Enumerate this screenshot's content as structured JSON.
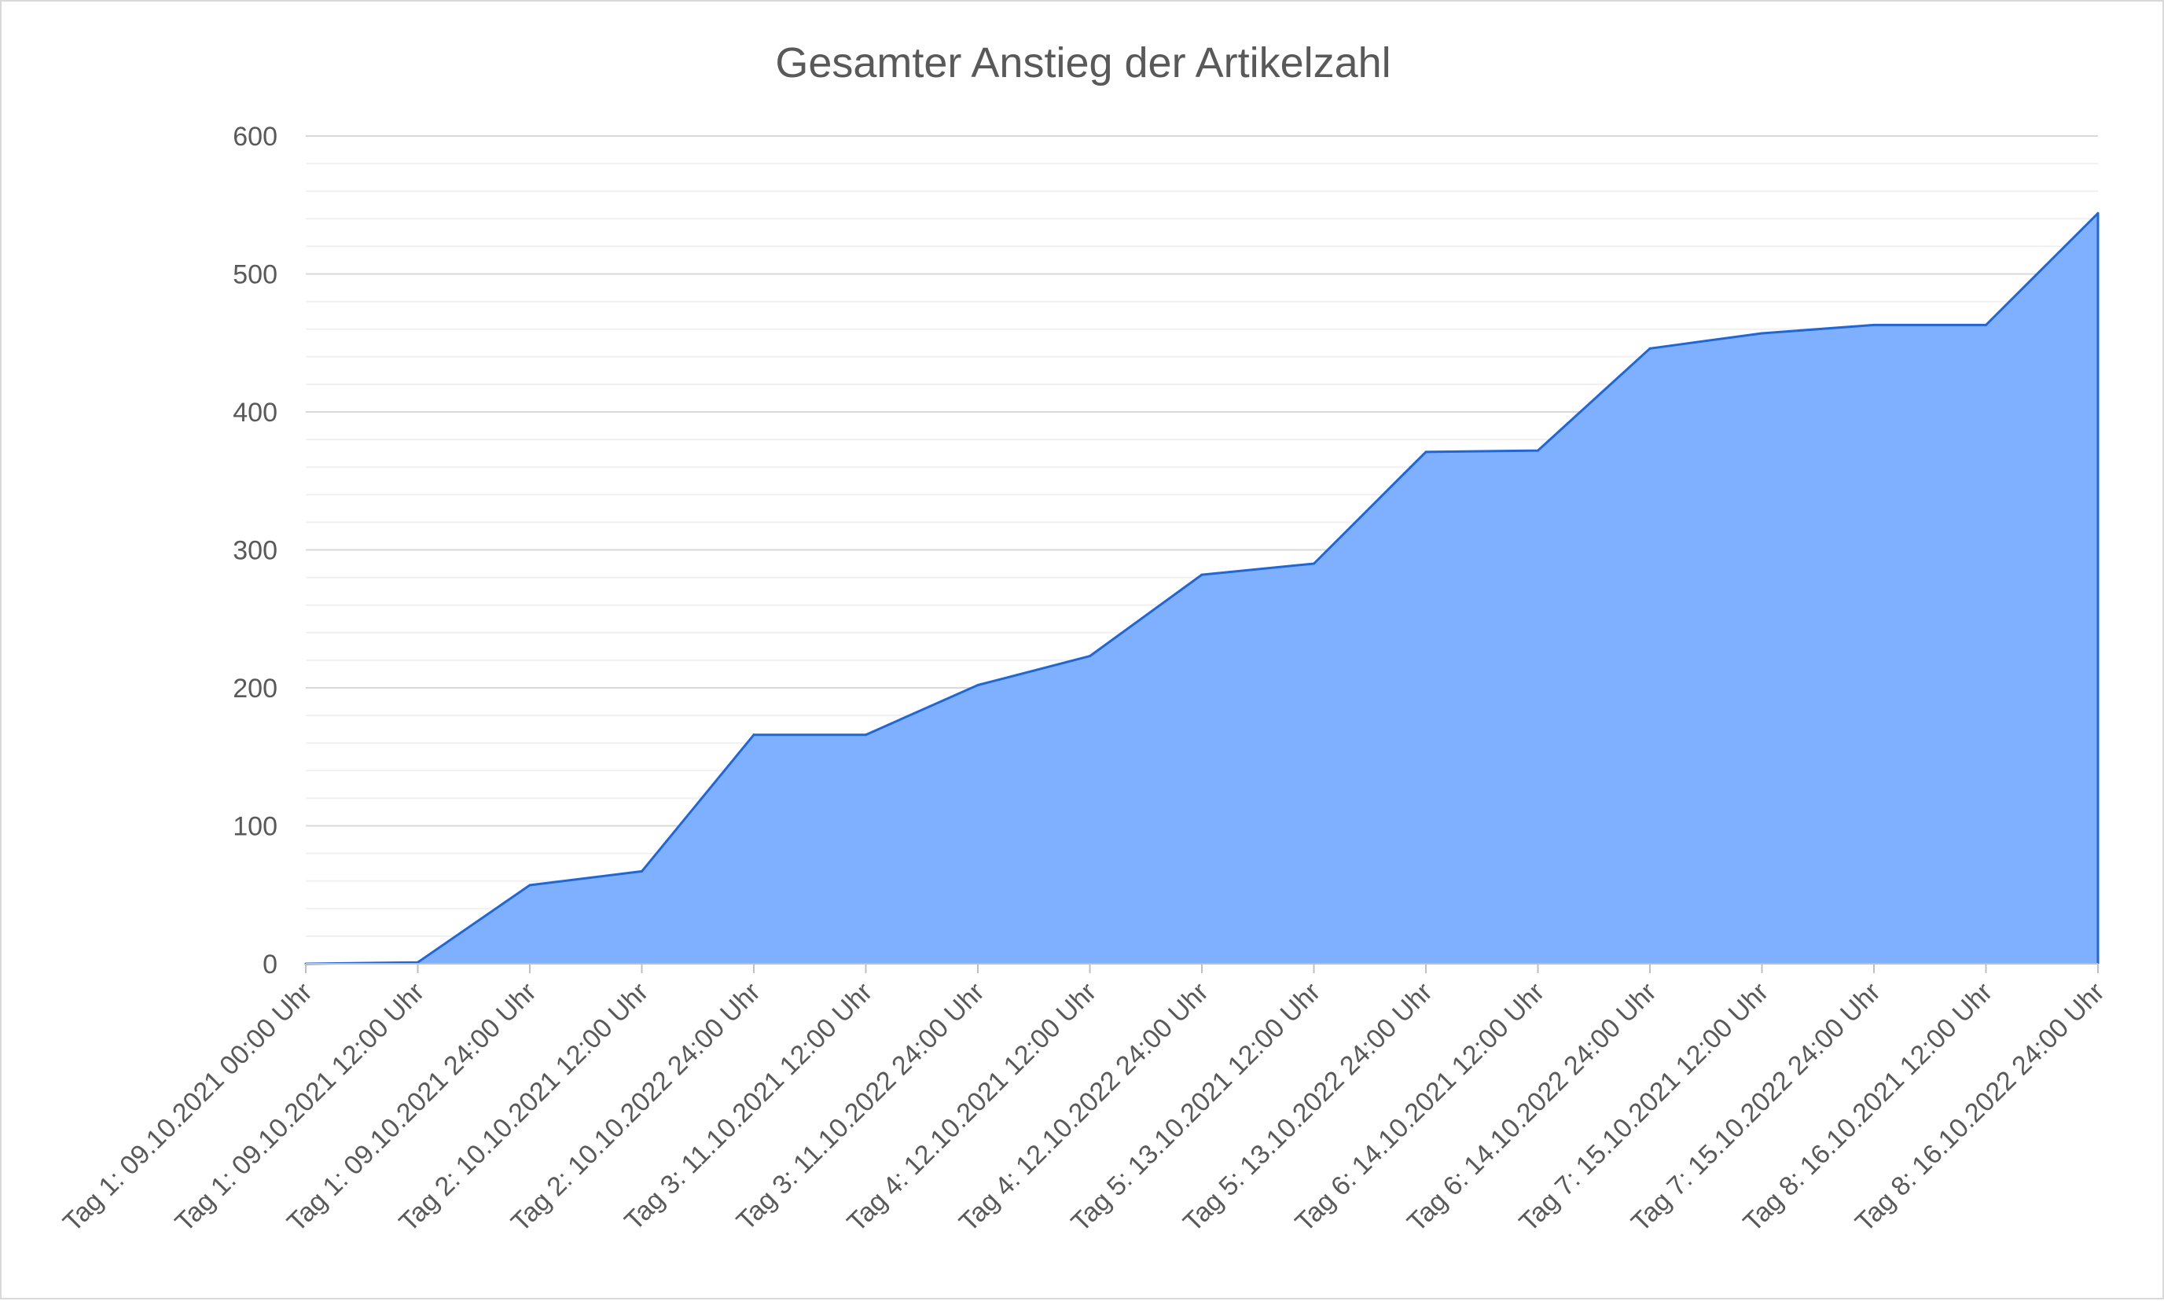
{
  "chart_data": {
    "type": "area",
    "title": "Gesamter Anstieg der Artikelzahl",
    "xlabel": "",
    "ylabel": "",
    "ylim": [
      0,
      600
    ],
    "y_ticks": [
      0,
      100,
      200,
      300,
      400,
      500,
      600
    ],
    "grid": "major and minor horizontal gridlines",
    "legend": "none",
    "fill_color": "#7eb0ff",
    "line_color": "#2166d6",
    "categories": [
      "Tag 1: 09.10.2021 00:00 Uhr",
      "Tag 1: 09.10.2021 12:00 Uhr",
      "Tag 1: 09.10.2021 24:00 Uhr",
      "Tag 2: 10.10.2021 12:00 Uhr",
      "Tag 2: 10.10.2022 24:00 Uhr",
      "Tag 3: 11.10.2021 12:00 Uhr",
      "Tag 3: 11.10.2022 24:00 Uhr",
      "Tag 4: 12.10.2021 12:00 Uhr",
      "Tag 4: 12.10.2022 24:00 Uhr",
      "Tag 5: 13.10.2021 12:00 Uhr",
      "Tag 5: 13.10.2022 24:00 Uhr",
      "Tag 6: 14.10.2021 12:00 Uhr",
      "Tag 6: 14.10.2022 24:00 Uhr",
      "Tag 7: 15.10.2021 12:00 Uhr",
      "Tag 7: 15.10.2022 24:00 Uhr",
      "Tag 8: 16.10.2021 12:00 Uhr",
      "Tag 8: 16.10.2022 24:00 Uhr"
    ],
    "values": [
      0,
      1,
      57,
      67,
      166,
      166,
      202,
      223,
      282,
      290,
      371,
      372,
      446,
      457,
      463,
      463,
      544
    ]
  }
}
